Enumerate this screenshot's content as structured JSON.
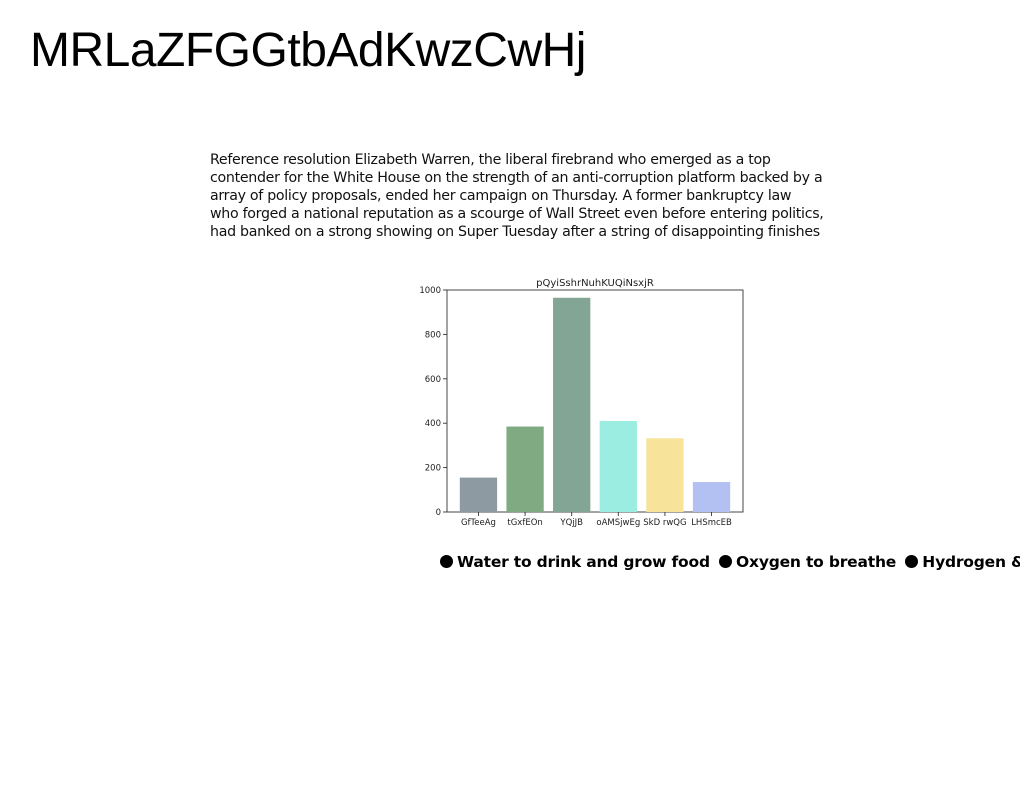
{
  "document": {
    "title": "MRLaZFGGtbAdKwzCwHj",
    "paragraph_lines": [
      "Reference resolution Elizabeth Warren, the liberal firebrand who emerged as a top",
      "contender for the White House on the strength of an anti-corruption platform backed by a",
      "array of policy proposals, ended her campaign on Thursday. A former bankruptcy law",
      "who forged a national reputation as a scourge of Wall Street even before entering politics,",
      "had banked on a strong showing on Super Tuesday after a string of disappointing finishes"
    ],
    "legend_items": [
      "Water to drink and grow food",
      "Oxygen to breathe",
      "Hydrogen &"
    ]
  },
  "chart_data": {
    "type": "bar",
    "title": "pQyiSshrNuhKUQiNsxjR",
    "categories": [
      "GfTeeAg",
      "tGxfEOn",
      "YQjJB",
      "oAMSjwEg",
      "SkD rwQG",
      "LHSmcEB"
    ],
    "values": [
      155,
      385,
      965,
      410,
      332,
      135
    ],
    "colors": [
      "#8e9aa1",
      "#80ab82",
      "#83a595",
      "#9aede0",
      "#f7e39a",
      "#b3c1f2"
    ],
    "ylim": [
      0,
      1000
    ],
    "yticks": [
      0,
      200,
      400,
      600,
      800,
      1000
    ],
    "xlabel": "",
    "ylabel": ""
  }
}
